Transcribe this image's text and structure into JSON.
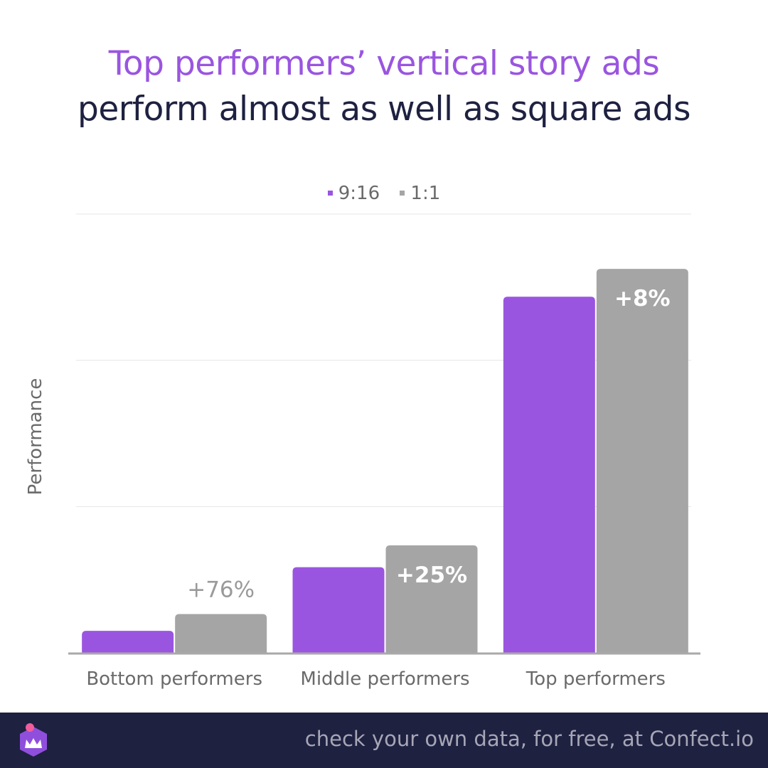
{
  "title_line1": "Top performers’ vertical story ads",
  "title_line2": "perform almost as well as square ads",
  "footer_text": "check your own data, for free, at Confect.io",
  "colors": {
    "series_916": "#9a55e0",
    "series_11": "#a5a5a5",
    "title_accent": "#9a55e0",
    "title_dark": "#1e2140",
    "footer_bg": "#1e2140"
  },
  "icons": {
    "logo": "confect-crown-logo-icon"
  },
  "chart_data": {
    "type": "bar",
    "title": "Top performers’ vertical story ads perform almost as well as square ads",
    "ylabel": "Performance",
    "xlabel": "",
    "categories": [
      "Bottom performers",
      "Middle performers",
      "Top performers"
    ],
    "series": [
      {
        "name": "9:16",
        "values": [
          0.3,
          1.17,
          4.87
        ]
      },
      {
        "name": "1:1",
        "values": [
          0.53,
          1.47,
          5.25
        ]
      }
    ],
    "data_labels": [
      "+76%",
      "+25%",
      "+8%"
    ],
    "ylim": [
      0,
      6
    ],
    "gridlines": [
      2,
      4,
      6
    ],
    "legend_position": "top-center",
    "grid": true
  }
}
